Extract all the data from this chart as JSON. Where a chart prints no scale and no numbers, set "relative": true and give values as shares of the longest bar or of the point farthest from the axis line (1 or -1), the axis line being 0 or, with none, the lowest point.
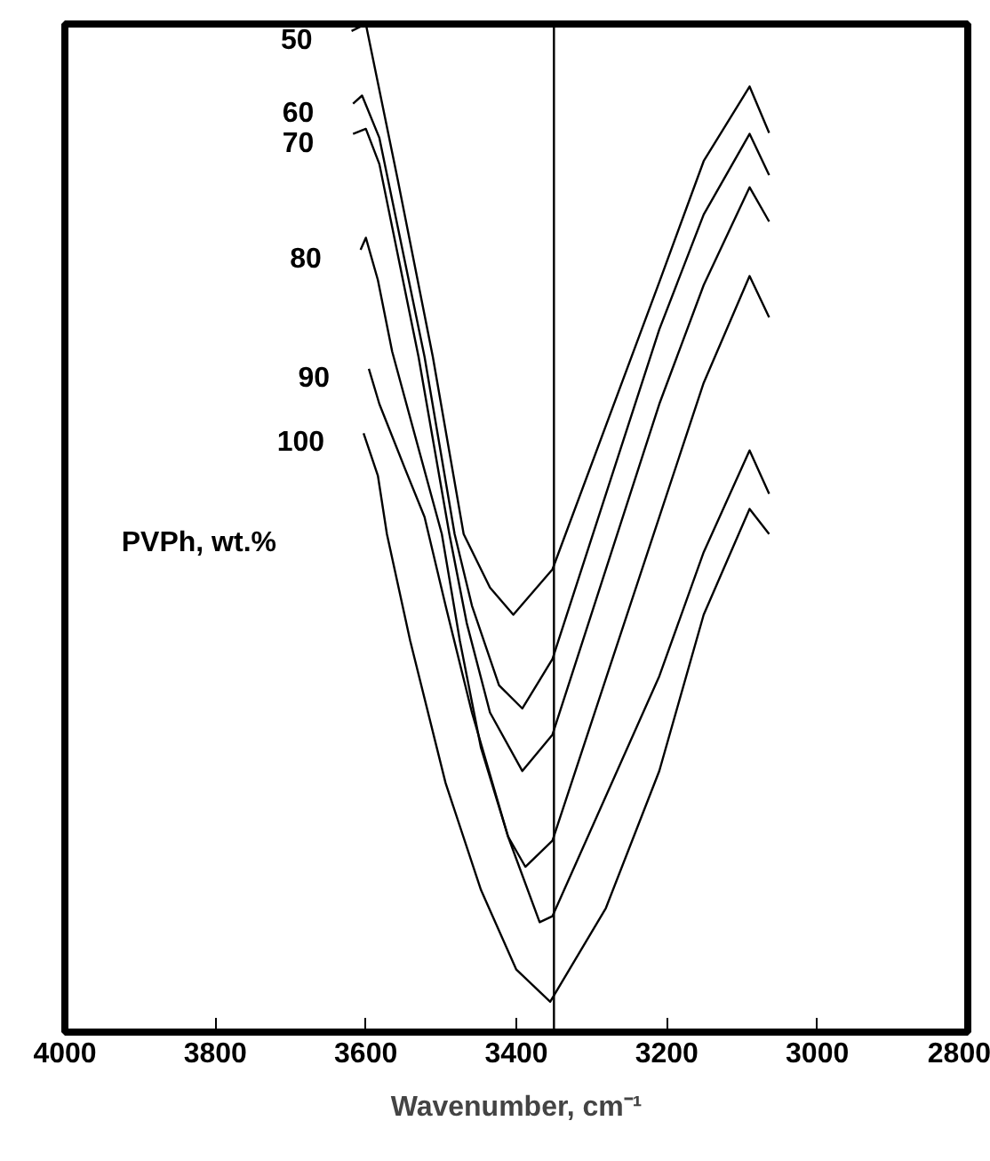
{
  "chart_data": {
    "type": "line",
    "relative": true,
    "xlabel": "Wavenumber, cm⁻¹",
    "legend_title": "PVPh, wt.%",
    "xlim": [
      4000,
      2800
    ],
    "xticks": [
      4000,
      3800,
      3600,
      3400,
      3200,
      3000,
      2800
    ],
    "grid": false,
    "marker": "none",
    "line_style": "solid",
    "ref_lines": [
      {
        "axis": "x",
        "value": 3350,
        "color": "#000000"
      }
    ],
    "series": [
      {
        "name": "50",
        "color": "#000000",
        "x": [
          3619,
          3600,
          3558,
          3511,
          3470,
          3435,
          3404,
          3352,
          3210,
          3151,
          3090,
          3064
        ],
        "values": [
          0.993,
          1.0,
          0.847,
          0.67,
          0.494,
          0.441,
          0.414,
          0.459,
          0.744,
          0.864,
          0.938,
          0.892
        ]
      },
      {
        "name": "60",
        "color": "#000000",
        "x": [
          3617,
          3605,
          3582,
          3522,
          3482,
          3459,
          3423,
          3392,
          3352,
          3210,
          3151,
          3090,
          3064
        ],
        "values": [
          0.921,
          0.929,
          0.887,
          0.67,
          0.494,
          0.423,
          0.344,
          0.321,
          0.37,
          0.697,
          0.811,
          0.891,
          0.85
        ]
      },
      {
        "name": "70",
        "color": "#000000",
        "x": [
          3617,
          3600,
          3582,
          3530,
          3489,
          3466,
          3435,
          3392,
          3352,
          3210,
          3151,
          3090,
          3064
        ],
        "values": [
          0.891,
          0.896,
          0.861,
          0.67,
          0.494,
          0.406,
          0.317,
          0.259,
          0.295,
          0.623,
          0.741,
          0.838,
          0.804
        ]
      },
      {
        "name": "80",
        "color": "#000000",
        "x": [
          3607,
          3600,
          3584,
          3565,
          3499,
          3475,
          3447,
          3411,
          3388,
          3352,
          3210,
          3151,
          3090,
          3064
        ],
        "values": [
          0.776,
          0.788,
          0.746,
          0.675,
          0.494,
          0.388,
          0.282,
          0.194,
          0.164,
          0.19,
          0.511,
          0.644,
          0.75,
          0.709
        ]
      },
      {
        "name": "90",
        "color": "#000000",
        "x": [
          3596,
          3582,
          3548,
          3522,
          3494,
          3459,
          3411,
          3369,
          3352,
          3210,
          3151,
          3090,
          3064
        ],
        "values": [
          0.658,
          0.623,
          0.559,
          0.511,
          0.423,
          0.317,
          0.194,
          0.109,
          0.115,
          0.353,
          0.476,
          0.577,
          0.534
        ]
      },
      {
        "name": "100",
        "color": "#000000",
        "x": [
          3603,
          3584,
          3572,
          3541,
          3494,
          3447,
          3400,
          3355,
          3281,
          3210,
          3151,
          3090,
          3064
        ],
        "values": [
          0.594,
          0.552,
          0.494,
          0.388,
          0.247,
          0.141,
          0.062,
          0.03,
          0.123,
          0.259,
          0.414,
          0.519,
          0.494
        ]
      }
    ]
  }
}
